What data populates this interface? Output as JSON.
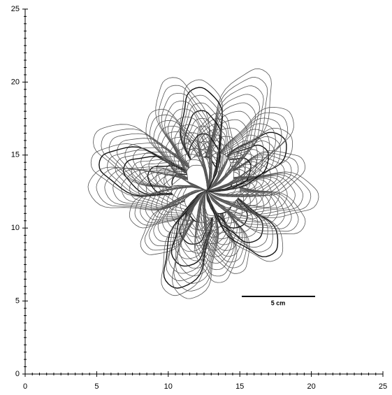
{
  "chart_data": {
    "type": "image",
    "annotation": "5 cm",
    "xlim": [
      0,
      25
    ],
    "ylim": [
      0,
      25
    ],
    "xticks": [
      0,
      5,
      10,
      15,
      20,
      25
    ],
    "yticks": [
      0,
      5,
      10,
      15,
      20,
      25
    ]
  }
}
